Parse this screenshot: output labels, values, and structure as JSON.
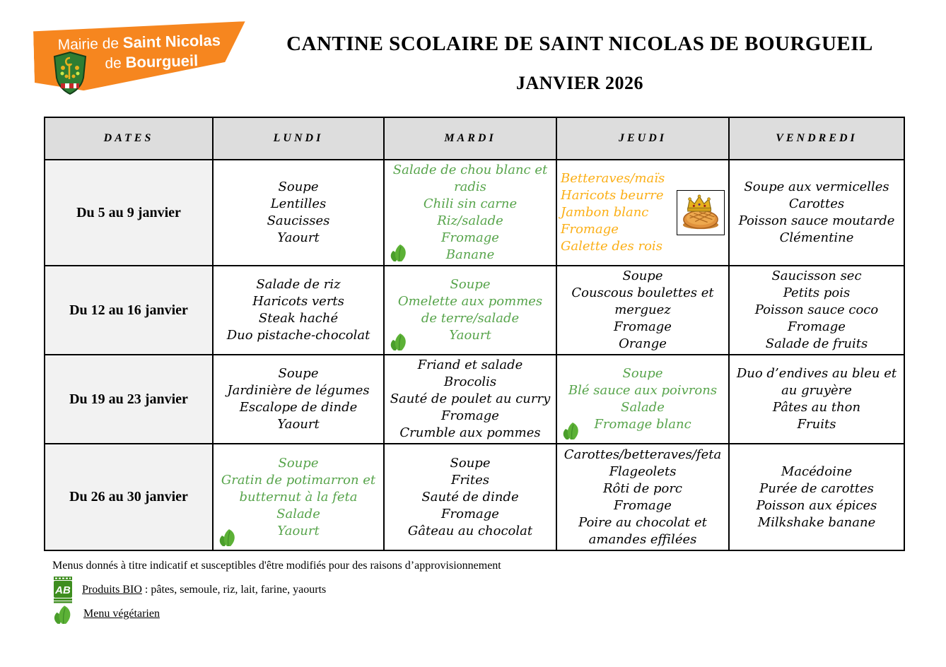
{
  "logo": {
    "line1_regular": "Mairie de ",
    "line1_bold": "Saint Nicolas",
    "line2_regular": "de ",
    "line2_bold": "Bourgueil"
  },
  "title": "CANTINE SCOLAIRE DE SAINT NICOLAS DE BOURGUEIL",
  "subtitle": "JANVIER 2026",
  "table": {
    "columns": [
      "DATES",
      "LUNDI",
      "MARDI",
      "JEUDI",
      "VENDREDI"
    ],
    "rows": [
      {
        "date": "Du 5 au 9 janvier",
        "cells": [
          {
            "lines": [
              "Soupe",
              "Lentilles",
              "Saucisses",
              "Yaourt"
            ],
            "color": "black",
            "vegetarian": false
          },
          {
            "lines": [
              "Salade de chou blanc et radis",
              "Chili sin carne",
              "Riz/salade",
              "Fromage",
              "Banane"
            ],
            "color": "green",
            "vegetarian": true
          },
          {
            "lines": [
              "Betteraves/maïs",
              "Haricots beurre",
              "Jambon blanc",
              "Fromage",
              "Galette des rois"
            ],
            "color": "orange",
            "vegetarian": false,
            "align": "left",
            "image": "galette-des-rois"
          },
          {
            "lines": [
              "Soupe aux vermicelles",
              "Carottes",
              "Poisson sauce moutarde",
              "Clémentine"
            ],
            "color": "black",
            "vegetarian": false
          }
        ]
      },
      {
        "date": "Du 12 au 16 janvier",
        "cells": [
          {
            "lines": [
              "Salade de riz",
              "Haricots verts",
              "Steak haché",
              "Duo pistache-chocolat"
            ],
            "color": "black",
            "vegetarian": false
          },
          {
            "lines": [
              "Soupe",
              "Omelette aux pommes de terre/salade",
              "Yaourt"
            ],
            "color": "green",
            "vegetarian": true
          },
          {
            "lines": [
              "Soupe",
              "Couscous boulettes et merguez",
              "Fromage",
              "Orange"
            ],
            "color": "black",
            "vegetarian": false
          },
          {
            "lines": [
              "Saucisson sec",
              "Petits pois",
              "Poisson sauce coco",
              "Fromage",
              "Salade de fruits"
            ],
            "color": "black",
            "vegetarian": false
          }
        ]
      },
      {
        "date": "Du 19 au 23 janvier",
        "cells": [
          {
            "lines": [
              "Soupe",
              "Jardinière de légumes",
              "Escalope de dinde",
              "Yaourt"
            ],
            "color": "black",
            "vegetarian": false
          },
          {
            "lines": [
              "Friand et salade",
              "Brocolis",
              "Sauté de poulet au curry",
              "Fromage",
              "Crumble aux pommes"
            ],
            "color": "black",
            "vegetarian": false
          },
          {
            "lines": [
              "Soupe",
              "Blé sauce aux poivrons",
              "Salade",
              "Fromage blanc"
            ],
            "color": "green",
            "vegetarian": true
          },
          {
            "lines": [
              "Duo d’endives au bleu et au gruyère",
              "Pâtes au thon",
              "Fruits"
            ],
            "color": "black",
            "vegetarian": false
          }
        ]
      },
      {
        "date": "Du 26 au 30 janvier",
        "cells": [
          {
            "lines": [
              "Soupe",
              "Gratin de potimarron et butternut à la feta",
              "Salade",
              "Yaourt"
            ],
            "color": "green",
            "vegetarian": true
          },
          {
            "lines": [
              "Soupe",
              "Frites",
              "Sauté de dinde",
              "Fromage",
              "Gâteau au chocolat"
            ],
            "color": "black",
            "vegetarian": false
          },
          {
            "lines": [
              "Carottes/betteraves/feta",
              "Flageolets",
              "Rôti de porc",
              "Fromage",
              "Poire au chocolat et amandes effilées"
            ],
            "color": "black",
            "vegetarian": false
          },
          {
            "lines": [
              "Macédoine",
              "Purée de carottes",
              "Poisson aux épices",
              "Milkshake banane"
            ],
            "color": "black",
            "vegetarian": false
          }
        ]
      }
    ]
  },
  "footer": {
    "note": "Menus donnés à titre indicatif et susceptibles d'être modifiés pour des raisons d’approvisionnement",
    "bio_label": "Produits BIO",
    "bio_rest": " : pâtes, semoule, riz, lait, farine, yaourts",
    "veg_label": "Menu végétarien",
    "ab_text": "AB"
  },
  "colors": {
    "banner_orange": "#F6861F",
    "menu_green": "#57A44B",
    "menu_orange": "#FBAF17",
    "leaf_green": "#5CB136",
    "header_bg": "#DDDDDD",
    "date_bg": "#F2F2F2"
  }
}
